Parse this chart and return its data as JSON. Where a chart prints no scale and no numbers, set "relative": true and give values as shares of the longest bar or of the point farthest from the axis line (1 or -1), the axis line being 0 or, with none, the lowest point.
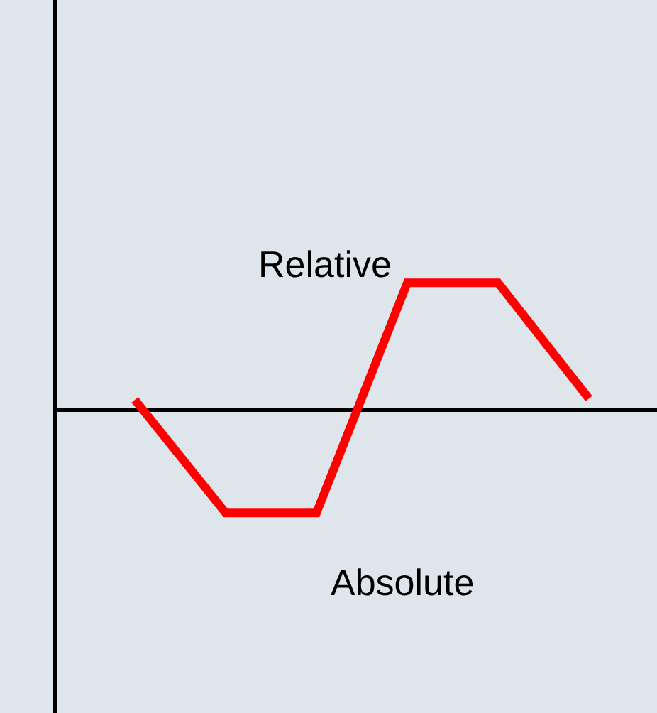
{
  "chart_data": {
    "type": "line",
    "relative": true,
    "categories": [
      null,
      null,
      null,
      null,
      null,
      null
    ],
    "series": [
      {
        "color": "#ff0000",
        "values": [
          0.08,
          -0.81,
          -0.81,
          1,
          1,
          0.09
        ]
      }
    ],
    "annotations": [
      "Relative",
      "Absolute"
    ],
    "grid": false,
    "marker": "none",
    "line_style": "solid"
  }
}
